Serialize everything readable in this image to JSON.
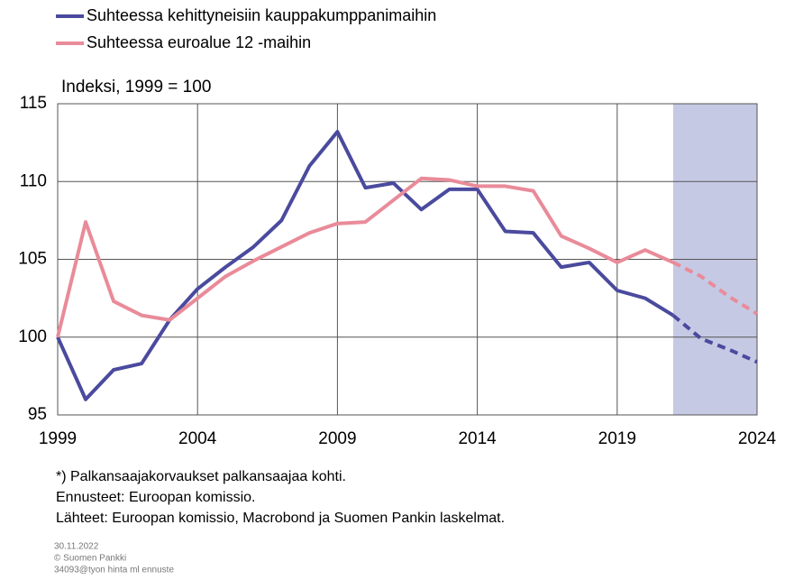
{
  "chart_data": {
    "type": "line",
    "y_label": "Indeksi, 1999 = 100",
    "x": [
      1999,
      2000,
      2001,
      2002,
      2003,
      2004,
      2005,
      2006,
      2007,
      2008,
      2009,
      2010,
      2011,
      2012,
      2013,
      2014,
      2015,
      2016,
      2017,
      2018,
      2019,
      2020,
      2021,
      2022,
      2023,
      2024
    ],
    "series": [
      {
        "name": "Suhteessa kehittyneisiin kauppakumppanimaihin",
        "color": "#4a4a9e",
        "values": [
          100,
          96.0,
          97.9,
          98.3,
          101.1,
          103.1,
          104.5,
          105.8,
          107.5,
          111.0,
          113.2,
          109.6,
          109.9,
          108.2,
          109.5,
          109.5,
          106.8,
          106.7,
          104.5,
          104.8,
          103.0,
          102.5,
          101.4,
          99.9,
          99.2,
          98.4
        ]
      },
      {
        "name": "Suhteessa euroalue 12 -maihin",
        "color": "#e98b99",
        "values": [
          100,
          107.4,
          102.3,
          101.4,
          101.1,
          102.5,
          103.9,
          104.9,
          105.8,
          106.7,
          107.3,
          107.4,
          108.8,
          110.2,
          110.1,
          109.7,
          109.7,
          109.4,
          106.5,
          105.7,
          104.8,
          105.6,
          104.8,
          103.9,
          102.6,
          101.5
        ]
      }
    ],
    "forecast_start": 2021,
    "forecast_color": "#c6c9e4",
    "xlim": [
      1999,
      2024
    ],
    "xticks": [
      1999,
      2004,
      2009,
      2014,
      2019,
      2024
    ],
    "ylim": [
      95,
      115
    ],
    "yticks": [
      95,
      100,
      105,
      110,
      115
    ],
    "grid": true,
    "notes": [
      "*) Palkansaajakorvaukset palkansaajaa kohti.",
      "Ennusteet: Euroopan komissio.",
      "Lähteet: Euroopan komissio, Macrobond ja Suomen Pankin laskelmat."
    ],
    "footer": [
      "30.11.2022",
      "© Suomen Pankki",
      "34093@tyon hinta ml ennuste"
    ]
  }
}
